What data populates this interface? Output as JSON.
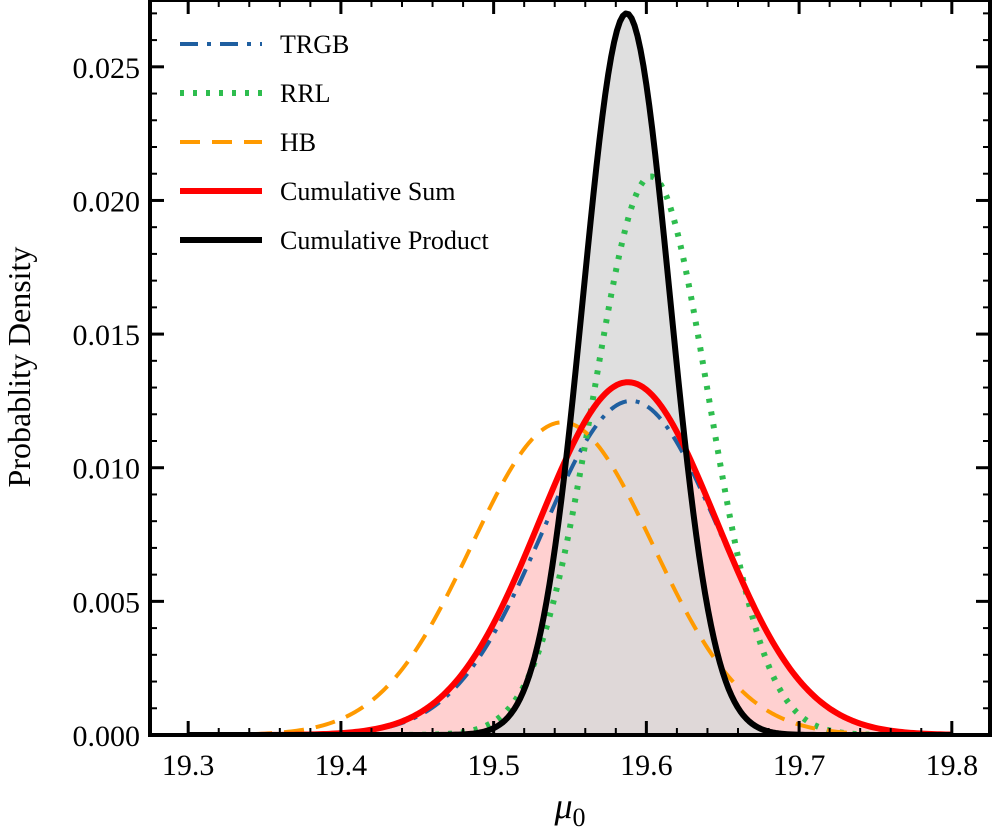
{
  "chart_data": {
    "type": "line",
    "title": "",
    "xlabel": "μ",
    "xlabel_subscript": "0",
    "ylabel": "Probablity Density",
    "xlim": [
      19.275,
      19.825
    ],
    "ylim": [
      0.0,
      0.0275
    ],
    "xticks": [
      19.3,
      19.4,
      19.5,
      19.6,
      19.7,
      19.8
    ],
    "xtick_labels": [
      "19.3",
      "19.4",
      "19.5",
      "19.6",
      "19.7",
      "19.8"
    ],
    "yticks": [
      0.0,
      0.005,
      0.01,
      0.015,
      0.02,
      0.025
    ],
    "ytick_labels": [
      "0.000",
      "0.005",
      "0.010",
      "0.015",
      "0.020",
      "0.025"
    ],
    "grid": false,
    "legend_position": "top-left",
    "x_range": [
      19.3,
      19.8
    ],
    "series": [
      {
        "name": "TRGB",
        "style": "dash-dot",
        "color": "#1f5fa0",
        "mean": 19.59,
        "sd": 0.0582,
        "peak": 0.0125,
        "x_range": [
          19.3,
          19.8
        ],
        "fill": null
      },
      {
        "name": "RRL",
        "style": "dotted",
        "color": "#2ebd4e",
        "mean": 19.603,
        "sd": 0.0377,
        "peak": 0.0209,
        "x_range": [
          19.3,
          19.8
        ],
        "fill": null
      },
      {
        "name": "HB",
        "style": "dashed",
        "color": "#ff9a00",
        "mean": 19.545,
        "sd": 0.0594,
        "peak": 0.0117,
        "x_range": [
          19.3,
          19.8
        ],
        "fill": null
      },
      {
        "name": "Cumulative Sum",
        "style": "solid",
        "color": "#ff0000",
        "mean": 19.588,
        "sd": 0.058,
        "peak": 0.0132,
        "x_range": [
          19.3,
          19.8
        ],
        "fill": "#ffd0d0"
      },
      {
        "name": "Cumulative Product",
        "style": "solid",
        "color": "#000000",
        "mean": 19.587,
        "sd": 0.0285,
        "peak": 0.027,
        "x_range": [
          19.3,
          19.8
        ],
        "fill": "#d9d9d9"
      }
    ]
  }
}
